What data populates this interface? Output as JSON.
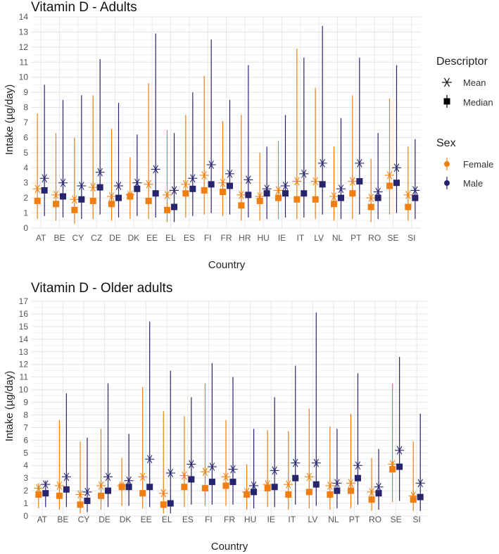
{
  "legend": {
    "descriptor_title": "Descriptor",
    "descriptor_items": [
      {
        "label": "Mean",
        "shape": "asterisk"
      },
      {
        "label": "Median",
        "shape": "square"
      }
    ],
    "sex_title": "Sex",
    "sex_items": [
      {
        "label": "Female",
        "color": "#f07e10"
      },
      {
        "label": "Male",
        "color": "#27246e"
      }
    ]
  },
  "chart_data": [
    {
      "type": "scatter",
      "title": "Vitamin D - Adults",
      "xlabel": "Country",
      "ylabel": "Intake (µg/day)",
      "ylim": [
        0,
        14
      ],
      "yticks": [
        0,
        1,
        2,
        3,
        4,
        5,
        6,
        7,
        8,
        9,
        10,
        11,
        12,
        13,
        14
      ],
      "categories": [
        "AT",
        "BE",
        "CY",
        "CZ",
        "DE",
        "DK",
        "EE",
        "EL",
        "ES",
        "FI",
        "FR",
        "HR",
        "HU",
        "IE",
        "IT",
        "LV",
        "NL",
        "PT",
        "RO",
        "SE",
        "SI"
      ],
      "series": [
        {
          "name": "Female",
          "color": "#f07e10",
          "mean": [
            2.6,
            2.2,
            1.9,
            2.7,
            2.1,
            2.2,
            2.9,
            2.2,
            2.9,
            3.5,
            3.0,
            2.2,
            2.1,
            2.5,
            3.1,
            3.1,
            2.1,
            3.1,
            2.0,
            3.5,
            2.2
          ],
          "median": [
            1.8,
            1.6,
            1.2,
            1.8,
            1.6,
            2.1,
            1.8,
            1.2,
            2.3,
            2.5,
            2.4,
            1.5,
            1.8,
            2.0,
            1.9,
            1.9,
            1.6,
            2.3,
            1.4,
            2.8,
            1.4
          ],
          "low": [
            0.6,
            0.5,
            0.3,
            0.6,
            0.5,
            0.6,
            0.6,
            0.4,
            0.7,
            0.9,
            0.8,
            0.5,
            0.5,
            0.6,
            0.6,
            0.6,
            0.5,
            0.6,
            0.4,
            0.9,
            0.5
          ],
          "high": [
            7.6,
            6.3,
            6.0,
            8.8,
            6.6,
            4.7,
            9.6,
            6.5,
            7.5,
            10.1,
            7.1,
            7.5,
            5.0,
            5.8,
            11.9,
            9.3,
            5.4,
            8.8,
            4.6,
            8.6,
            5.4
          ]
        },
        {
          "name": "Male",
          "color": "#27246e",
          "mean": [
            3.3,
            3.0,
            2.8,
            3.7,
            2.8,
            3.0,
            3.9,
            2.5,
            3.3,
            4.2,
            3.6,
            3.2,
            2.6,
            2.8,
            3.6,
            4.3,
            2.6,
            4.3,
            2.4,
            4.0,
            2.5
          ],
          "median": [
            2.5,
            2.1,
            1.9,
            2.7,
            2.0,
            2.6,
            2.3,
            1.4,
            2.6,
            2.9,
            2.8,
            2.2,
            2.3,
            2.3,
            2.3,
            2.9,
            2.0,
            3.1,
            2.0,
            3.0,
            2.0
          ],
          "low": [
            0.8,
            0.7,
            0.6,
            0.9,
            0.7,
            0.8,
            0.7,
            0.4,
            0.8,
            1.0,
            0.9,
            0.7,
            0.6,
            0.7,
            0.7,
            0.9,
            0.6,
            0.9,
            0.6,
            1.0,
            0.6
          ],
          "high": [
            9.5,
            8.5,
            8.8,
            11.2,
            8.3,
            6.2,
            12.9,
            6.3,
            9.0,
            12.5,
            8.5,
            10.8,
            5.4,
            7.5,
            11.3,
            13.4,
            7.3,
            11.3,
            6.3,
            10.8,
            5.9
          ]
        }
      ]
    },
    {
      "type": "scatter",
      "title": "Vitamin D - Older adults",
      "xlabel": "Country",
      "ylabel": "Intake (µg/day)",
      "ylim": [
        0,
        17
      ],
      "yticks": [
        0,
        1,
        2,
        3,
        4,
        5,
        6,
        7,
        8,
        9,
        10,
        11,
        12,
        13,
        14,
        15,
        16,
        17
      ],
      "categories": [
        "AT",
        "BE",
        "CY",
        "DE",
        "DK",
        "EE",
        "EL",
        "ES",
        "FI",
        "FR",
        "HU",
        "IE",
        "IT",
        "LV",
        "NL",
        "PT",
        "RO",
        "SE",
        "SI"
      ],
      "series": [
        {
          "name": "Female",
          "color": "#f07e10",
          "mean": [
            2.2,
            2.4,
            1.7,
            2.4,
            2.4,
            3.1,
            1.8,
            3.2,
            3.5,
            3.1,
            1.9,
            2.5,
            2.5,
            3.1,
            2.4,
            2.6,
            1.9,
            4.1,
            1.6
          ],
          "median": [
            1.7,
            1.6,
            0.9,
            1.6,
            2.3,
            1.8,
            0.9,
            2.3,
            2.2,
            2.4,
            1.7,
            2.2,
            1.7,
            1.9,
            1.7,
            2.0,
            1.3,
            3.7,
            1.3
          ],
          "low": [
            0.6,
            0.5,
            0.2,
            0.5,
            0.8,
            0.6,
            0.2,
            0.7,
            0.8,
            0.8,
            0.5,
            0.7,
            0.5,
            0.6,
            0.5,
            0.6,
            0.4,
            1.1,
            0.4
          ],
          "high": [
            2.6,
            7.6,
            5.9,
            6.9,
            4.6,
            10.2,
            8.3,
            7.9,
            10.5,
            7.6,
            4.1,
            6.8,
            6.7,
            8.5,
            7.1,
            8.1,
            4.6,
            10.5,
            5.9
          ]
        },
        {
          "name": "Male",
          "color": "#27246e",
          "mean": [
            2.5,
            3.1,
            1.9,
            3.1,
            2.8,
            4.5,
            3.4,
            4.1,
            3.9,
            3.7,
            2.4,
            3.6,
            4.2,
            4.2,
            2.6,
            4.0,
            2.3,
            5.2,
            2.6
          ],
          "median": [
            1.8,
            2.1,
            1.2,
            2.0,
            2.3,
            2.3,
            1.0,
            2.9,
            2.7,
            2.7,
            1.9,
            2.3,
            3.0,
            2.5,
            2.0,
            3.0,
            1.8,
            3.9,
            1.5
          ],
          "low": [
            0.7,
            0.7,
            0.3,
            0.7,
            0.8,
            0.7,
            0.2,
            0.9,
            0.9,
            0.9,
            0.6,
            0.7,
            0.9,
            0.8,
            0.6,
            0.9,
            0.5,
            1.2,
            0.4
          ],
          "high": [
            2.8,
            9.7,
            6.2,
            10.5,
            6.5,
            15.4,
            11.5,
            9.4,
            12.1,
            11.0,
            6.9,
            9.4,
            11.9,
            16.1,
            6.9,
            11.3,
            5.3,
            12.6,
            8.1
          ]
        }
      ]
    }
  ]
}
